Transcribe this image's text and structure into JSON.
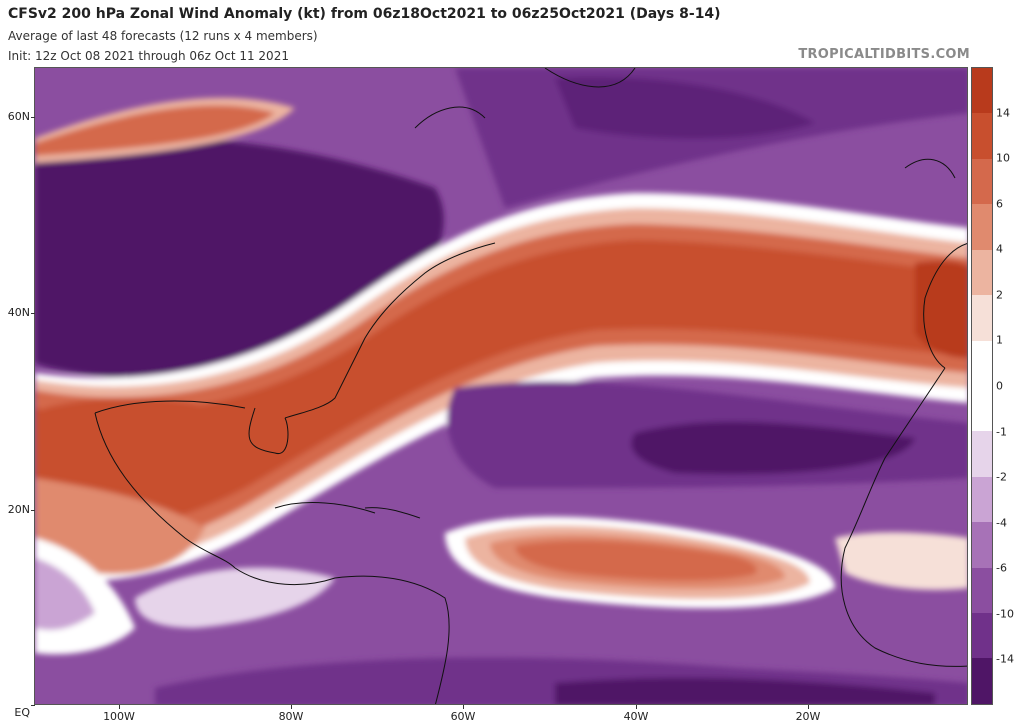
{
  "header": {
    "title": "CFSv2 200 hPa Zonal Wind Anomaly (kt) from 06z18Oct2021 to 06z25Oct2021 (Days 8-14)",
    "subtitle1": "Average of last 48 forecasts (12 runs x 4 members)",
    "subtitle2": "Init: 12z Oct 08 2021 through 06z Oct 11 2021",
    "brand": "TROPICALTIDBITS.COM"
  },
  "map": {
    "lat_labels": [
      "60N",
      "40N",
      "20N",
      "EQ"
    ],
    "lon_labels": [
      "100W",
      "80W",
      "60W",
      "40W",
      "20W"
    ],
    "lat_range": [
      0,
      66
    ],
    "lon_range": [
      -110,
      1
    ]
  },
  "colorbar": {
    "labels": [
      "14",
      "10",
      "6",
      "4",
      "2",
      "1",
      "0",
      "-1",
      "-2",
      "-4",
      "-6",
      "-10",
      "-14"
    ],
    "colors": [
      "#b83a1c",
      "#c84f2e",
      "#d4694c",
      "#e08a6e",
      "#ecb4a0",
      "#f6e0d8",
      "#ffffff",
      "#e6d4ea",
      "#caa4d4",
      "#a772b7",
      "#8b4ea0",
      "#70318a",
      "#4f1566"
    ],
    "seg_colors": [
      "#b83a1c",
      "#c84f2e",
      "#d4694c",
      "#e08a6e",
      "#ecb4a0",
      "#f6e0d8",
      "#ffffff",
      "#ffffff",
      "#e6d4ea",
      "#caa4d4",
      "#a772b7",
      "#8b4ea0",
      "#70318a",
      "#4f1566"
    ]
  }
}
